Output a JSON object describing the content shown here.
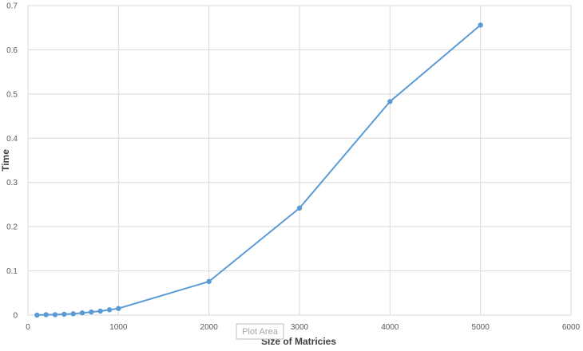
{
  "chart_data": {
    "type": "line",
    "title": "",
    "xlabel": "Size of Matricies",
    "ylabel": "Time",
    "xlim": [
      0,
      6000
    ],
    "ylim": [
      0,
      0.7
    ],
    "x_ticks": [
      "0",
      "1000",
      "2000",
      "3000",
      "4000",
      "5000",
      "6000"
    ],
    "y_ticks": [
      "0",
      "0.1",
      "0.2",
      "0.3",
      "0.4",
      "0.5",
      "0.6",
      "0.7"
    ],
    "grid": true,
    "legend": "none",
    "color": "#5b9bd5",
    "series": [
      {
        "x": [
          100,
          200,
          300,
          400,
          500,
          600,
          700,
          800,
          900,
          1000,
          2000,
          3000,
          4000,
          5000
        ],
        "values": [
          0.0,
          0.001,
          0.001,
          0.002,
          0.003,
          0.005,
          0.007,
          0.009,
          0.012,
          0.015,
          0.076,
          0.242,
          0.483,
          0.656
        ]
      }
    ]
  },
  "tooltip": {
    "text": "Plot Area"
  }
}
